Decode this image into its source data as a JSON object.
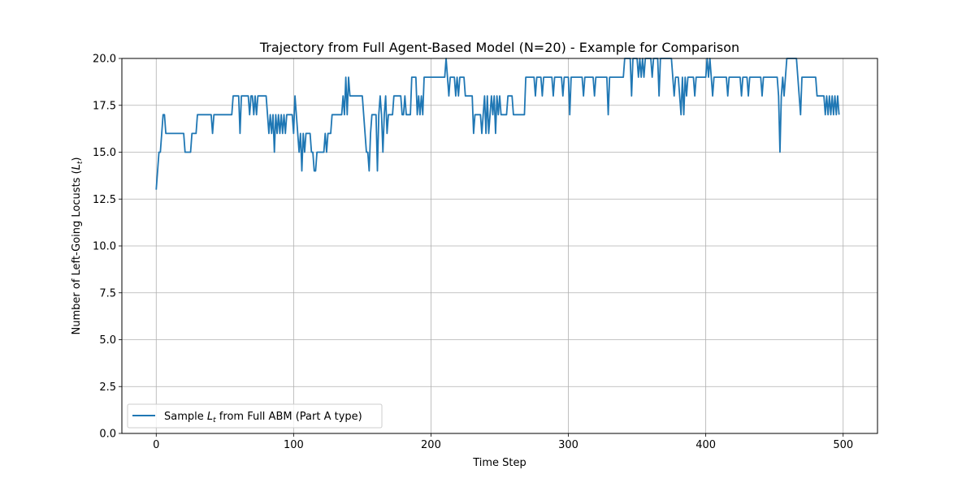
{
  "chart_data": {
    "type": "line",
    "title": "Trajectory from Full Agent-Based Model (N=20) - Example for Comparison",
    "xlabel": "Time Step",
    "ylabel": "Number of Left-Going Locusts (L_t)",
    "xlim": [
      -25,
      525
    ],
    "ylim": [
      0,
      20
    ],
    "xticks": [
      0,
      100,
      200,
      300,
      400,
      500
    ],
    "xtick_labels": [
      "0",
      "100",
      "200",
      "300",
      "400",
      "500"
    ],
    "yticks": [
      0,
      2.5,
      5,
      7.5,
      10,
      12.5,
      15,
      17.5,
      20
    ],
    "ytick_labels": [
      "0.0",
      "2.5",
      "5.0",
      "7.5",
      "10.0",
      "12.5",
      "15.0",
      "17.5",
      "20.0"
    ],
    "grid": true,
    "legend_position": "lower-left",
    "colors": {
      "series": "#1f77b4",
      "grid": "#b0b0b0"
    },
    "series": [
      {
        "name": "Sample L_t from Full ABM (Part A type)",
        "points": [
          [
            0,
            13
          ],
          [
            1,
            14
          ],
          [
            2,
            15
          ],
          [
            3,
            15
          ],
          [
            4,
            16
          ],
          [
            5,
            17
          ],
          [
            6,
            17
          ],
          [
            7,
            16
          ],
          [
            10,
            16
          ],
          [
            15,
            16
          ],
          [
            20,
            16
          ],
          [
            21,
            15
          ],
          [
            25,
            15
          ],
          [
            26,
            16
          ],
          [
            29,
            16
          ],
          [
            30,
            17
          ],
          [
            40,
            17
          ],
          [
            41,
            16
          ],
          [
            42,
            17
          ],
          [
            55,
            17
          ],
          [
            56,
            18
          ],
          [
            60,
            18
          ],
          [
            61,
            16
          ],
          [
            62,
            18
          ],
          [
            67,
            18
          ],
          [
            68,
            17
          ],
          [
            69,
            18
          ],
          [
            70,
            18
          ],
          [
            71,
            17
          ],
          [
            72,
            18
          ],
          [
            73,
            17
          ],
          [
            74,
            18
          ],
          [
            80,
            18
          ],
          [
            81,
            17
          ],
          [
            82,
            16
          ],
          [
            83,
            17
          ],
          [
            84,
            16
          ],
          [
            85,
            17
          ],
          [
            86,
            15
          ],
          [
            87,
            17
          ],
          [
            88,
            16
          ],
          [
            89,
            17
          ],
          [
            90,
            16
          ],
          [
            91,
            17
          ],
          [
            92,
            16
          ],
          [
            93,
            17
          ],
          [
            94,
            16
          ],
          [
            95,
            17
          ],
          [
            99,
            17
          ],
          [
            100,
            16
          ],
          [
            101,
            18
          ],
          [
            102,
            17
          ],
          [
            103,
            16
          ],
          [
            104,
            15
          ],
          [
            105,
            16
          ],
          [
            106,
            14
          ],
          [
            107,
            16
          ],
          [
            108,
            15
          ],
          [
            109,
            16
          ],
          [
            112,
            16
          ],
          [
            113,
            15
          ],
          [
            114,
            15
          ],
          [
            115,
            14
          ],
          [
            116,
            14
          ],
          [
            117,
            15
          ],
          [
            122,
            15
          ],
          [
            123,
            16
          ],
          [
            124,
            15
          ],
          [
            125,
            16
          ],
          [
            127,
            16
          ],
          [
            128,
            17
          ],
          [
            135,
            17
          ],
          [
            136,
            18
          ],
          [
            137,
            17
          ],
          [
            138,
            19
          ],
          [
            139,
            17
          ],
          [
            140,
            19
          ],
          [
            141,
            18
          ],
          [
            150,
            18
          ],
          [
            151,
            17
          ],
          [
            152,
            16
          ],
          [
            153,
            15
          ],
          [
            154,
            15
          ],
          [
            155,
            14
          ],
          [
            156,
            16
          ],
          [
            157,
            17
          ],
          [
            160,
            17
          ],
          [
            161,
            14
          ],
          [
            162,
            17
          ],
          [
            163,
            18
          ],
          [
            164,
            17
          ],
          [
            165,
            15
          ],
          [
            166,
            17
          ],
          [
            167,
            18
          ],
          [
            168,
            16
          ],
          [
            169,
            17
          ],
          [
            172,
            17
          ],
          [
            173,
            18
          ],
          [
            178,
            18
          ],
          [
            179,
            17
          ],
          [
            180,
            17
          ],
          [
            181,
            18
          ],
          [
            182,
            17
          ],
          [
            185,
            17
          ],
          [
            186,
            19
          ],
          [
            189,
            19
          ],
          [
            190,
            17
          ],
          [
            191,
            18
          ],
          [
            192,
            17
          ],
          [
            193,
            18
          ],
          [
            194,
            17
          ],
          [
            195,
            19
          ],
          [
            210,
            19
          ],
          [
            211,
            20
          ],
          [
            212,
            19
          ],
          [
            213,
            18
          ],
          [
            214,
            19
          ],
          [
            217,
            19
          ],
          [
            218,
            18
          ],
          [
            219,
            19
          ],
          [
            220,
            18
          ],
          [
            221,
            19
          ],
          [
            224,
            19
          ],
          [
            225,
            18
          ],
          [
            230,
            18
          ],
          [
            231,
            16
          ],
          [
            232,
            17
          ],
          [
            236,
            17
          ],
          [
            237,
            16
          ],
          [
            238,
            17
          ],
          [
            239,
            18
          ],
          [
            240,
            16
          ],
          [
            241,
            18
          ],
          [
            242,
            16
          ],
          [
            243,
            17
          ],
          [
            244,
            18
          ],
          [
            245,
            17
          ],
          [
            246,
            18
          ],
          [
            247,
            16
          ],
          [
            248,
            18
          ],
          [
            249,
            17
          ],
          [
            250,
            18
          ],
          [
            251,
            17
          ],
          [
            255,
            17
          ],
          [
            256,
            18
          ],
          [
            259,
            18
          ],
          [
            260,
            17
          ],
          [
            268,
            17
          ],
          [
            269,
            19
          ],
          [
            275,
            19
          ],
          [
            276,
            18
          ],
          [
            277,
            19
          ],
          [
            280,
            19
          ],
          [
            281,
            18
          ],
          [
            282,
            19
          ],
          [
            288,
            19
          ],
          [
            289,
            18
          ],
          [
            290,
            19
          ],
          [
            295,
            19
          ],
          [
            296,
            18
          ],
          [
            297,
            19
          ],
          [
            300,
            19
          ],
          [
            301,
            17
          ],
          [
            302,
            19
          ],
          [
            310,
            19
          ],
          [
            311,
            18
          ],
          [
            312,
            19
          ],
          [
            318,
            19
          ],
          [
            319,
            18
          ],
          [
            320,
            19
          ],
          [
            328,
            19
          ],
          [
            329,
            17
          ],
          [
            330,
            19
          ],
          [
            340,
            19
          ],
          [
            341,
            20
          ],
          [
            345,
            20
          ],
          [
            346,
            18
          ],
          [
            347,
            20
          ],
          [
            350,
            20
          ],
          [
            351,
            19
          ],
          [
            352,
            20
          ],
          [
            353,
            19
          ],
          [
            354,
            20
          ],
          [
            355,
            19
          ],
          [
            356,
            20
          ],
          [
            360,
            20
          ],
          [
            361,
            19
          ],
          [
            362,
            20
          ],
          [
            365,
            20
          ],
          [
            366,
            18
          ],
          [
            367,
            20
          ],
          [
            375,
            20
          ],
          [
            376,
            19
          ],
          [
            377,
            18
          ],
          [
            378,
            19
          ],
          [
            380,
            19
          ],
          [
            381,
            18
          ],
          [
            382,
            17
          ],
          [
            383,
            19
          ],
          [
            384,
            17
          ],
          [
            385,
            19
          ],
          [
            386,
            18
          ],
          [
            387,
            19
          ],
          [
            391,
            19
          ],
          [
            392,
            18
          ],
          [
            393,
            19
          ],
          [
            400,
            19
          ],
          [
            401,
            20
          ],
          [
            402,
            19
          ],
          [
            403,
            20
          ],
          [
            404,
            19
          ],
          [
            405,
            18
          ],
          [
            406,
            19
          ],
          [
            415,
            19
          ],
          [
            416,
            18
          ],
          [
            417,
            19
          ],
          [
            425,
            19
          ],
          [
            426,
            18
          ],
          [
            427,
            19
          ],
          [
            430,
            19
          ],
          [
            431,
            18
          ],
          [
            432,
            19
          ],
          [
            440,
            19
          ],
          [
            441,
            18
          ],
          [
            442,
            19
          ],
          [
            452,
            19
          ],
          [
            453,
            18
          ],
          [
            454,
            15
          ],
          [
            455,
            18
          ],
          [
            456,
            19
          ],
          [
            457,
            18
          ],
          [
            458,
            19
          ],
          [
            459,
            20
          ],
          [
            466,
            20
          ],
          [
            467,
            19
          ],
          [
            468,
            18
          ],
          [
            469,
            17
          ],
          [
            470,
            19
          ],
          [
            480,
            19
          ],
          [
            481,
            18
          ],
          [
            486,
            18
          ],
          [
            487,
            17
          ],
          [
            488,
            18
          ],
          [
            489,
            17
          ],
          [
            490,
            18
          ],
          [
            491,
            17
          ],
          [
            492,
            18
          ],
          [
            493,
            17
          ],
          [
            494,
            18
          ],
          [
            495,
            17
          ],
          [
            496,
            18
          ],
          [
            497,
            17
          ]
        ]
      }
    ]
  }
}
